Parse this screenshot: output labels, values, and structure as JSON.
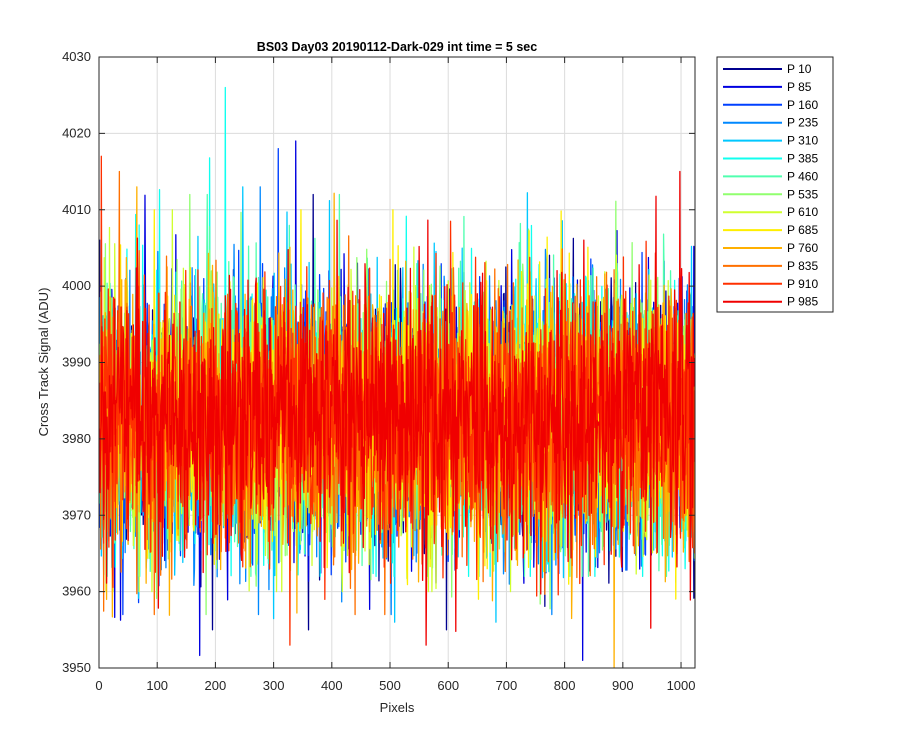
{
  "chart_data": {
    "type": "line",
    "title": "BS03 Day03 20190112-Dark-029 int time = 5 sec",
    "xlabel": "Pixels",
    "ylabel": "Cross Track Signal (ADU)",
    "xlim": [
      0,
      1024
    ],
    "ylim": [
      3950,
      4030
    ],
    "xticks": [
      "0",
      "100",
      "200",
      "300",
      "400",
      "500",
      "600",
      "700",
      "800",
      "900",
      "1000"
    ],
    "yticks": [
      "3950",
      "3960",
      "3970",
      "3980",
      "3990",
      "4000",
      "4010",
      "4020",
      "4030"
    ],
    "grid": true,
    "legend_position": "outside-top-right",
    "n_points": 1024,
    "series_mean": 3982.5,
    "series": [
      {
        "name": "P 10",
        "color": "#00008f",
        "min": 3955,
        "max": 4012
      },
      {
        "name": "P 85",
        "color": "#0000e0",
        "min": 3951,
        "max": 4019
      },
      {
        "name": "P 160",
        "color": "#0040ff",
        "min": 3957,
        "max": 4018
      },
      {
        "name": "P 235",
        "color": "#0088ff",
        "min": 3957,
        "max": 4013
      },
      {
        "name": "P 310",
        "color": "#00c8ff",
        "min": 3956,
        "max": 4013
      },
      {
        "name": "P 385",
        "color": "#10ffef",
        "min": 3962,
        "max": 4026
      },
      {
        "name": "P 460",
        "color": "#50ffaf",
        "min": 3962,
        "max": 4012
      },
      {
        "name": "P 535",
        "color": "#90ff6f",
        "min": 3957,
        "max": 4012
      },
      {
        "name": "P 610",
        "color": "#d0ff2f",
        "min": 3960,
        "max": 4010
      },
      {
        "name": "P 685",
        "color": "#ffef00",
        "min": 3959,
        "max": 4010
      },
      {
        "name": "P 760",
        "color": "#ffb000",
        "min": 3950,
        "max": 4013
      },
      {
        "name": "P 835",
        "color": "#ff7000",
        "min": 3957,
        "max": 4015
      },
      {
        "name": "P 910",
        "color": "#ff3000",
        "min": 3953,
        "max": 4017
      },
      {
        "name": "P 985",
        "color": "#f00000",
        "min": 3953,
        "max": 4015
      }
    ]
  }
}
